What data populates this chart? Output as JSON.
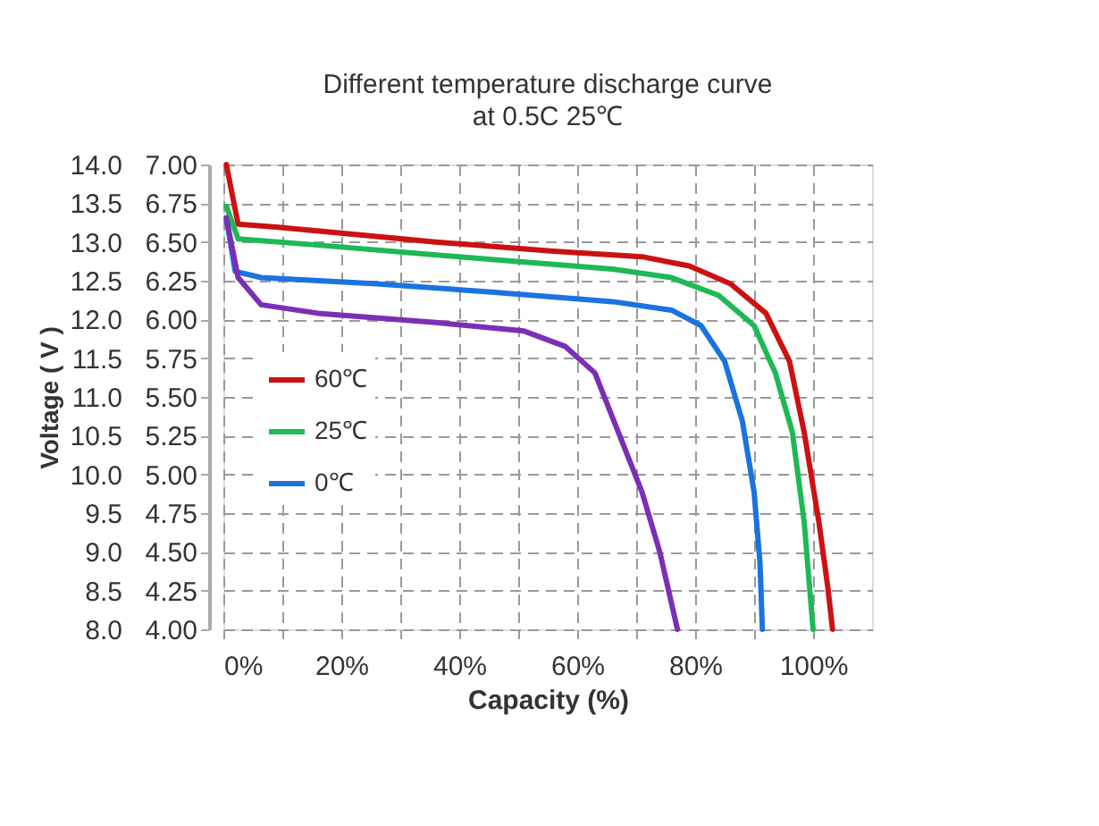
{
  "chart_data": {
    "type": "line",
    "title": "Different temperature discharge curve",
    "subtitle": "at  0.5C   25℃",
    "xlabel": "Capacity (%)",
    "ylabel": "Voltage ( V )",
    "xlim": [
      0,
      110
    ],
    "xticks": [
      {
        "value": 0,
        "label": "0%"
      },
      {
        "value": 10,
        "label": null
      },
      {
        "value": 20,
        "label": "20%"
      },
      {
        "value": 30,
        "label": null
      },
      {
        "value": 40,
        "label": "40%"
      },
      {
        "value": 50,
        "label": null
      },
      {
        "value": 60,
        "label": "60%"
      },
      {
        "value": 70,
        "label": null
      },
      {
        "value": 80,
        "label": "80%"
      },
      {
        "value": 90,
        "label": null
      },
      {
        "value": 100,
        "label": "100%"
      }
    ],
    "ylim": [
      8,
      14
    ],
    "yticks": [
      {
        "value": 14,
        "label": "14.0"
      },
      13.5,
      {
        "value": 13,
        "label": "13.0"
      },
      12.5,
      {
        "value": 12,
        "label": "12.0"
      },
      11.5,
      {
        "value": 11,
        "label": "11.0"
      },
      10.5,
      {
        "value": 10,
        "label": "10.0"
      },
      9.5,
      {
        "value": 9,
        "label": "9.0"
      },
      8.5,
      {
        "value": 8,
        "label": "8.0"
      }
    ],
    "y2lim": [
      4,
      7
    ],
    "y2ticks": [
      {
        "value": 7,
        "label": "7.00"
      },
      6.75,
      {
        "value": 6.5,
        "label": "6.50"
      },
      6.25,
      {
        "value": 6,
        "label": "6.00"
      },
      5.75,
      {
        "value": 5.5,
        "label": "5.50"
      },
      5.25,
      {
        "value": 5,
        "label": "5.00"
      },
      4.75,
      {
        "value": 4.5,
        "label": "4.50"
      },
      4.25,
      {
        "value": 4,
        "label": "4.00"
      }
    ],
    "grid": true,
    "legend": "left",
    "line_style": "solid",
    "marker": "none",
    "series": [
      {
        "name": "60℃",
        "color": "#cc1111",
        "x": [
          0.5,
          2.5,
          9.4,
          36,
          56,
          71,
          79,
          86,
          92,
          96,
          98.5,
          101,
          102.5,
          103.3
        ],
        "values": [
          14.0,
          13.23,
          13.19,
          13.0,
          12.88,
          12.81,
          12.69,
          12.46,
          12.08,
          11.46,
          10.54,
          9.38,
          8.54,
          8.0
        ]
      },
      {
        "name": "25℃",
        "color": "#1db954",
        "x": [
          0.5,
          2.5,
          16,
          46,
          66,
          76,
          84,
          90,
          93.6,
          96.5,
          98.5,
          100
        ],
        "values": [
          13.46,
          13.04,
          12.96,
          12.77,
          12.65,
          12.54,
          12.31,
          11.92,
          11.31,
          10.54,
          9.38,
          8.0
        ]
      },
      {
        "name": "0℃",
        "color": "#1a73e0",
        "x": [
          0.5,
          2,
          6.4,
          26,
          46,
          66,
          76,
          81,
          85,
          88,
          90,
          91,
          91.4
        ],
        "values": [
          13.31,
          12.62,
          12.54,
          12.46,
          12.35,
          12.23,
          12.12,
          11.92,
          11.46,
          10.69,
          9.77,
          8.85,
          8.0
        ]
      },
      {
        "color": "#7b2fb5",
        "x": [
          0.5,
          2.5,
          6.4,
          16,
          36,
          51,
          58,
          63,
          67,
          71,
          74,
          77
        ],
        "values": [
          13.31,
          12.54,
          12.19,
          12.08,
          11.96,
          11.85,
          11.65,
          11.31,
          10.54,
          9.77,
          9.0,
          8.0
        ]
      }
    ]
  }
}
